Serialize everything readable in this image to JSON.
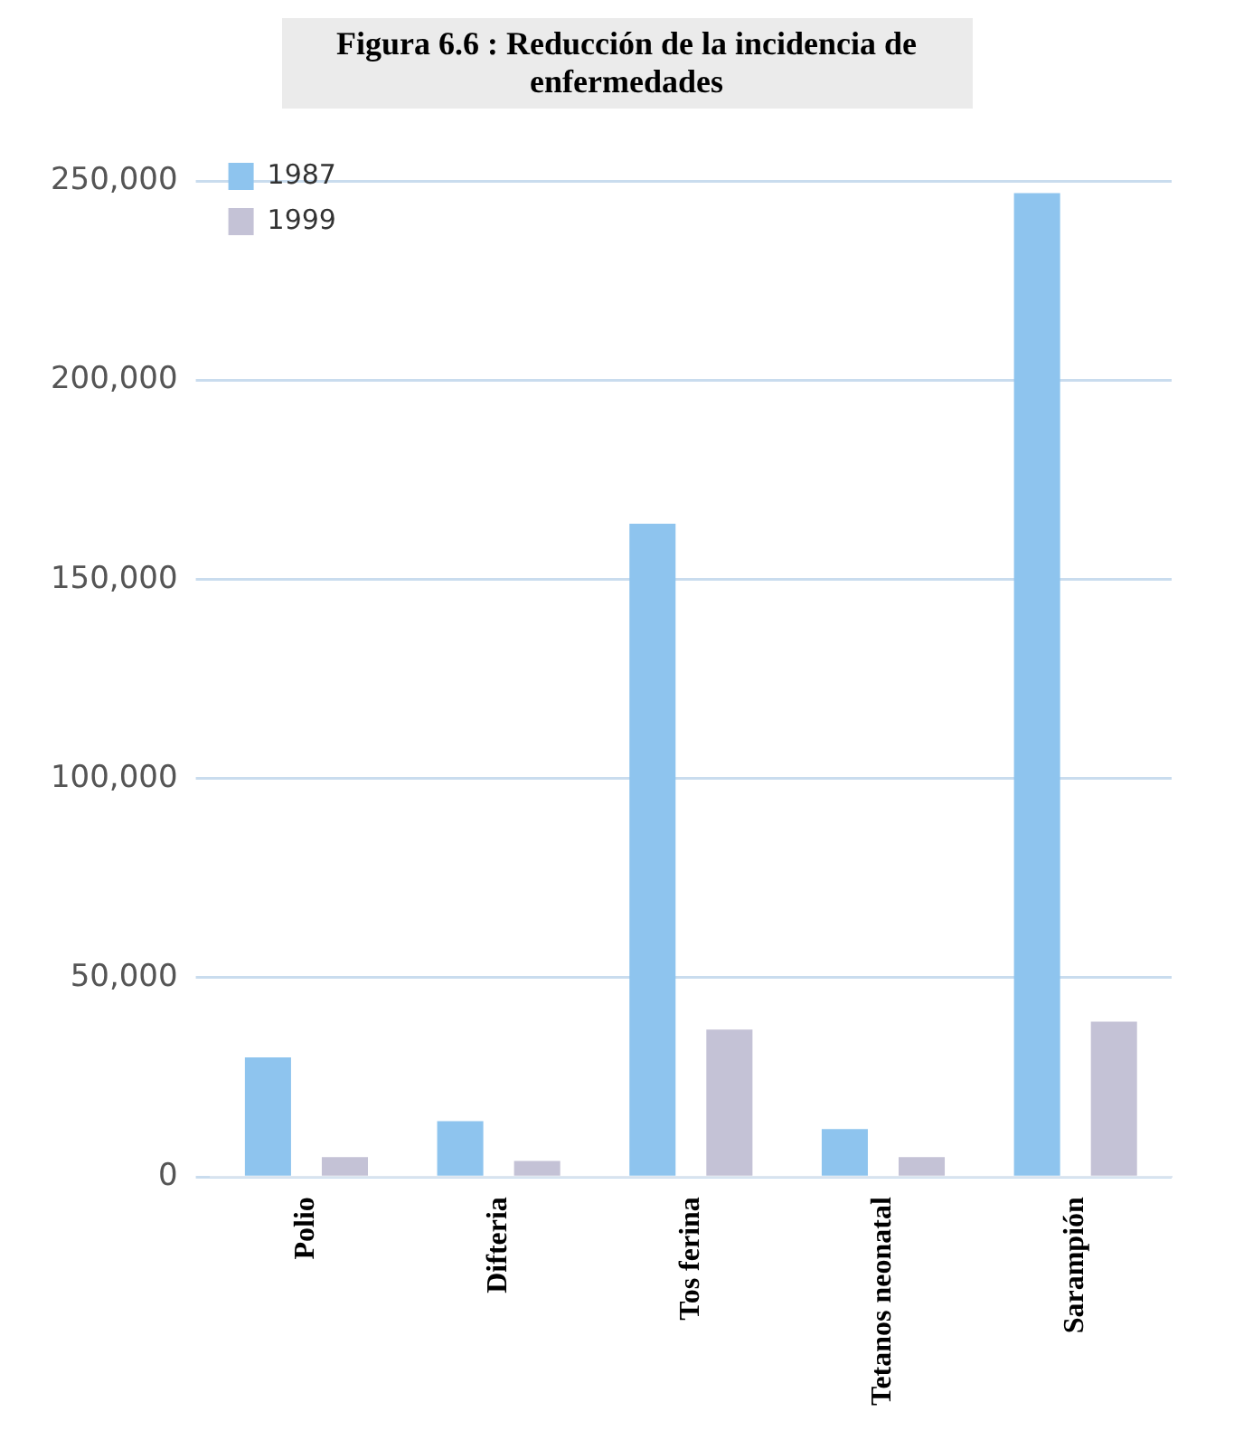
{
  "chart_data": {
    "type": "bar",
    "title": "Figura 6.6 : Reducción de la incidencia de enfermedades",
    "categories": [
      "Polio",
      "Difteria",
      "Tos ferina",
      "Tetanos neonatal",
      "Sarampión"
    ],
    "series": [
      {
        "name": "1987",
        "color": "#8ec4ee",
        "values": [
          30000,
          14000,
          164000,
          12000,
          247000
        ]
      },
      {
        "name": "1999",
        "color": "#c4c2d6",
        "values": [
          5000,
          4000,
          37000,
          5000,
          39000
        ]
      }
    ],
    "ylim": [
      0,
      250000
    ],
    "yticks": [
      0,
      {
        "value": 50000,
        "label": "50,000"
      },
      {
        "value": 100000,
        "label": "100,000"
      },
      {
        "value": 150000,
        "label": "150,000"
      },
      {
        "value": 200000,
        "label": "200,000"
      },
      {
        "value": 250000,
        "label": "250,000"
      }
    ],
    "grid": "y",
    "legend": "top left"
  }
}
